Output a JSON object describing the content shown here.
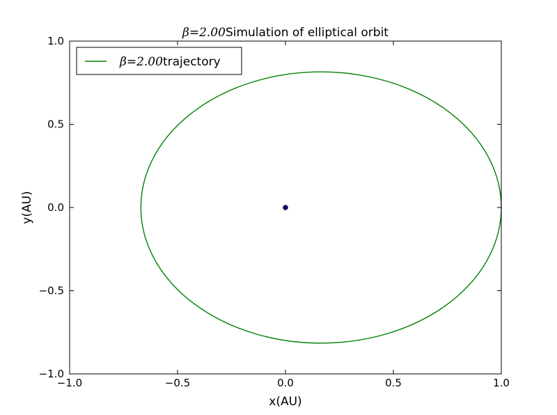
{
  "chart_data": {
    "type": "line",
    "title_math": "β=2.00",
    "title_text": "Simulation of elliptical orbit",
    "xlabel": "x(AU)",
    "ylabel": "y(AU)",
    "xlim": [
      -1.0,
      1.0
    ],
    "ylim": [
      -1.0,
      1.0
    ],
    "x_ticks": [
      -1.0,
      -0.5,
      0.0,
      0.5,
      1.0
    ],
    "y_ticks": [
      -1.0,
      -0.5,
      0.0,
      0.5,
      1.0
    ],
    "x_tick_labels": [
      "−1.0",
      "−0.5",
      "0.0",
      "0.5",
      "1.0"
    ],
    "y_tick_labels": [
      "−1.0",
      "−0.5",
      "0.0",
      "0.5",
      "1.0"
    ],
    "grid": false,
    "legend_position": "top-left",
    "series": [
      {
        "name_math": "β=2.00",
        "name_text": "trajectory",
        "color": "#008000",
        "type": "ellipse",
        "center": [
          0.165,
          0.0
        ],
        "semi_axes": [
          0.835,
          0.815
        ]
      },
      {
        "color": "#000080",
        "type": "point",
        "x": 0.0,
        "y": 0.0
      }
    ]
  }
}
